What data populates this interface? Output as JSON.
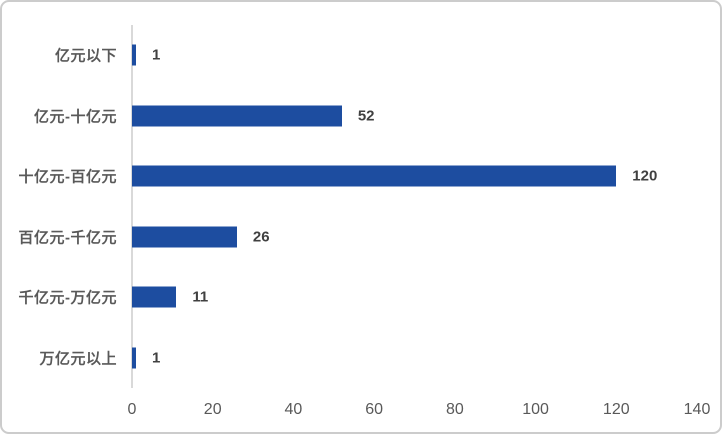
{
  "chart_data": {
    "type": "bar",
    "orientation": "horizontal",
    "title": "",
    "xlabel": "",
    "ylabel": "",
    "categories": [
      "亿元以下",
      "亿元-十亿元",
      "十亿元-百亿元",
      "百亿元-千亿元",
      "千亿元-万亿元",
      "万亿元以上"
    ],
    "values": [
      1,
      52,
      120,
      26,
      11,
      1
    ],
    "data_labels": [
      "1",
      "52",
      "120",
      "26",
      "11",
      "1"
    ],
    "xlim": [
      0,
      140
    ],
    "x_ticks": [
      0,
      20,
      40,
      60,
      80,
      100,
      120,
      140
    ],
    "grid": false,
    "legend": null,
    "colors": {
      "bar": "#1d4da0",
      "category_label": "#595959",
      "value_label": "#404040",
      "tick_label": "#595959",
      "axis_line": "#d9d9d9",
      "background": "#ffffff",
      "frame_border": "#cccccc"
    }
  }
}
